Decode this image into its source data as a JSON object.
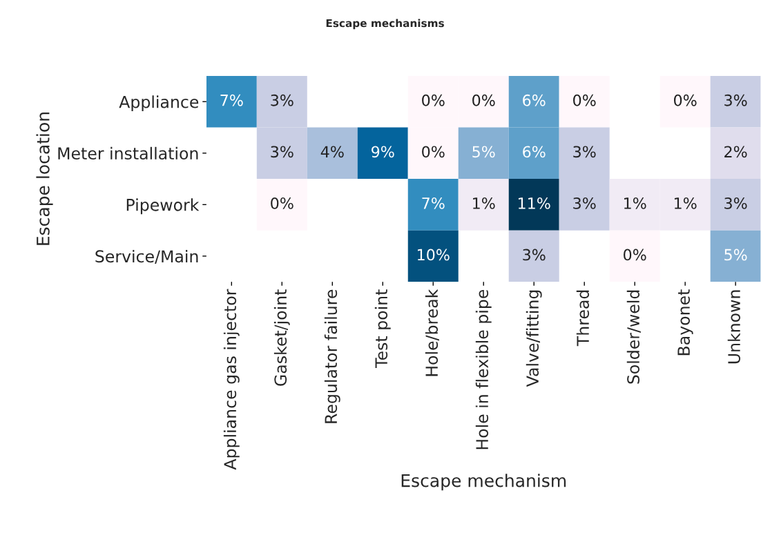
{
  "chart_data": {
    "type": "heatmap",
    "title": "Escape mechanisms",
    "xlabel": "Escape mechanism",
    "ylabel": "Escape location",
    "categories": [
      "Appliance gas injector",
      "Gasket/joint",
      "Regulator failure",
      "Test point",
      "Hole/break",
      "Hole in flexible pipe",
      "Valve/fitting",
      "Thread",
      "Solder/weld",
      "Bayonet",
      "Unknown"
    ],
    "y_categories": [
      "Appliance",
      "Meter installation",
      "Pipework",
      "Service/Main"
    ],
    "cells": [
      [
        7,
        3,
        null,
        null,
        0,
        0,
        6,
        0,
        null,
        0,
        3
      ],
      [
        null,
        3,
        4,
        9,
        0,
        5,
        6,
        3,
        null,
        null,
        2
      ],
      [
        null,
        0,
        null,
        null,
        7,
        1,
        11,
        3,
        1,
        1,
        3
      ],
      [
        null,
        null,
        null,
        null,
        10,
        null,
        3,
        null,
        0,
        null,
        5
      ]
    ],
    "cell_labels": [
      [
        "7%",
        "3%",
        null,
        null,
        "0%",
        "0%",
        "6%",
        "0%",
        null,
        "0%",
        "3%"
      ],
      [
        null,
        "3%",
        "4%",
        "9%",
        "0%",
        "5%",
        "6%",
        "3%",
        null,
        null,
        "2%"
      ],
      [
        null,
        "0%",
        null,
        null,
        "7%",
        "1%",
        "11%",
        "3%",
        "1%",
        "1%",
        "3%"
      ],
      [
        null,
        null,
        null,
        null,
        "10%",
        null,
        "3%",
        null,
        "0%",
        null,
        "5%"
      ]
    ],
    "grid": false
  }
}
